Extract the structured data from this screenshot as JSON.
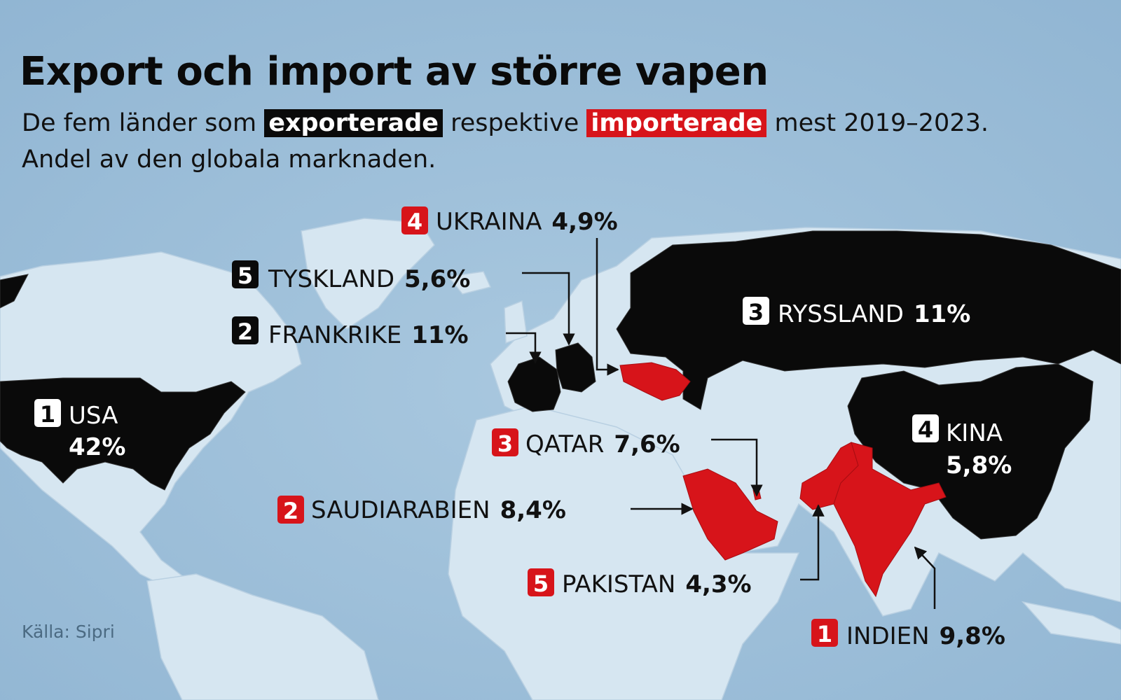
{
  "header": {
    "title": "Export och import av större vapen",
    "subtitle": {
      "before": "De fem länder som",
      "exported": "exporterade",
      "middle": "respektive",
      "imported": "importerade",
      "after": "mest 2019–2023.",
      "line2": "Andel av den globala marknaden."
    }
  },
  "exporters": [
    {
      "rank": 1,
      "country": "USA",
      "share": "42%"
    },
    {
      "rank": 2,
      "country": "FRANKRIKE",
      "share": "11%"
    },
    {
      "rank": 3,
      "country": "RYSSLAND",
      "share": "11%"
    },
    {
      "rank": 4,
      "country": "KINA",
      "share": "5,8%"
    },
    {
      "rank": 5,
      "country": "TYSKLAND",
      "share": "5,6%"
    }
  ],
  "importers": [
    {
      "rank": 1,
      "country": "INDIEN",
      "share": "9,8%"
    },
    {
      "rank": 2,
      "country": "SAUDIARABIEN",
      "share": "8,4%"
    },
    {
      "rank": 3,
      "country": "QATAR",
      "share": "7,6%"
    },
    {
      "rank": 4,
      "country": "UKRAINA",
      "share": "4,9%"
    },
    {
      "rank": 5,
      "country": "PAKISTAN",
      "share": "4,3%"
    }
  ],
  "source": "Källa: Sipri"
}
